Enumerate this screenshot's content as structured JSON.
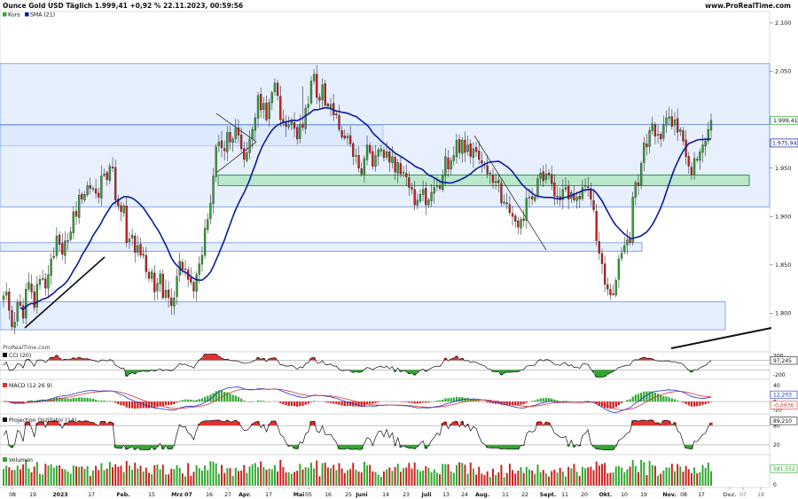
{
  "header": {
    "title": "Ounce Gold USD Täglich 1.999,41 +0,92 % 22.11.2023, 00:59:56",
    "source": "www.ProRealTime.com"
  },
  "legend": {
    "kurs": "Kurs",
    "sma": "SMA (21)"
  },
  "watermark": "ProRealTime.com",
  "colors": {
    "up": "#2ea82e",
    "down": "#d01c1c",
    "sma": "#0a1a9c",
    "zone_blue": "#d6e4fb",
    "zone_blue_border": "#6f93dd",
    "zone_green": "#a9e6b8",
    "zone_green_border": "#1b7a33",
    "macd_line": "#1a2fc4",
    "signal_line": "#e03030"
  },
  "chart_data": [
    {
      "type": "candlestick",
      "name": "Kurs",
      "ylim": [
        1762,
        2110
      ],
      "y_ticks": [
        "2.100",
        "2.050",
        "2.000",
        "1.950",
        "1.900",
        "1.850",
        "1.800"
      ],
      "y_tick_values": [
        2100,
        2050,
        2000,
        1950,
        1900,
        1850,
        1800
      ],
      "x_tick_labels": [
        "08",
        "19",
        "2023",
        "17",
        "Feb.",
        "15",
        "Mrz 07",
        "16",
        "27",
        "Apr.",
        "17",
        "Mai",
        "05",
        "16",
        "25",
        "Juni",
        "14",
        "23",
        "Juli",
        "13",
        "24",
        "Aug.",
        "11",
        "22",
        "Sept.",
        "11",
        "20",
        "Okt.",
        "10",
        "19",
        "Nov.",
        "08",
        "17",
        "Dez.",
        "07",
        "18"
      ],
      "last_label": "1.999,41",
      "sma_label": "1.975,94",
      "sma_last": 1975.94,
      "last_value": 1999.41,
      "zones": [
        {
          "kind": "blue",
          "y1": 1995,
          "y2": 2058
        },
        {
          "kind": "blue",
          "y1": 1973,
          "y2": 1994
        },
        {
          "kind": "blue",
          "y1": 1910,
          "y2": 1995
        },
        {
          "kind": "blue",
          "y1": 1864,
          "y2": 1873
        },
        {
          "kind": "blue",
          "y1": 1783,
          "y2": 1812
        },
        {
          "kind": "green",
          "y1": 1932,
          "y2": 1943
        }
      ],
      "closes": [
        1818,
        1822,
        1803,
        1786,
        1791,
        1811,
        1808,
        1795,
        1825,
        1832,
        1822,
        1806,
        1830,
        1835,
        1836,
        1826,
        1840,
        1856,
        1859,
        1880,
        1871,
        1861,
        1875,
        1875,
        1884,
        1905,
        1900,
        1922,
        1918,
        1923,
        1932,
        1929,
        1929,
        1924,
        1920,
        1942,
        1944,
        1938,
        1952,
        1950,
        1917,
        1911,
        1905,
        1911,
        1873,
        1877,
        1881,
        1863,
        1870,
        1860,
        1860,
        1843,
        1836,
        1843,
        1822,
        1831,
        1841,
        1816,
        1824,
        1816,
        1808,
        1816,
        1838,
        1854,
        1845,
        1846,
        1835,
        1832,
        1823,
        1840,
        1851,
        1860,
        1888,
        1897,
        1914,
        1942,
        1972,
        1977,
        1971,
        1968,
        1987,
        1977,
        1980,
        1991,
        1984,
        1970,
        1959,
        1966,
        1980,
        1990,
        2002,
        2025,
        2010,
        2017,
        2000,
        2018,
        2028,
        2038,
        2025,
        2000,
        1998,
        1993,
        1994,
        1998,
        1991,
        1980,
        1995,
        1992,
        2012,
        2016,
        2040,
        2047,
        2023,
        2020,
        2036,
        2015,
        2014,
        2016,
        2005,
        2005,
        1990,
        1982,
        1981,
        1983,
        1975,
        1962,
        1963,
        1950,
        1944,
        1960,
        1974,
        1966,
        1952,
        1963,
        1969,
        1970,
        1961,
        1967,
        1956,
        1962,
        1946,
        1956,
        1944,
        1946,
        1941,
        1930,
        1928,
        1912,
        1917,
        1923,
        1928,
        1912,
        1917,
        1925,
        1930,
        1932,
        1929,
        1942,
        1962,
        1949,
        1958,
        1963,
        1979,
        1966,
        1979,
        1966,
        1974,
        1962,
        1970,
        1967,
        1959,
        1955,
        1953,
        1944,
        1944,
        1935,
        1936,
        1935,
        1914,
        1915,
        1913,
        1904,
        1900,
        1895,
        1889,
        1897,
        1896,
        1919,
        1920,
        1918,
        1920,
        1939,
        1945,
        1937,
        1944,
        1943,
        1934,
        1921,
        1921,
        1917,
        1928,
        1930,
        1918,
        1925,
        1917,
        1920,
        1918,
        1930,
        1932,
        1930,
        1918,
        1907,
        1875,
        1862,
        1851,
        1830,
        1825,
        1819,
        1820,
        1834,
        1856,
        1862,
        1870,
        1876,
        1873,
        1920,
        1935,
        1932,
        1955,
        1976,
        1972,
        1989,
        1996,
        1983,
        1985,
        1980,
        1995,
        2002,
        2003,
        1993,
        2000,
        1987,
        1990,
        1978,
        1962,
        1952,
        1943,
        1960,
        1959,
        1967,
        1974,
        1978,
        1990,
        1999.41
      ]
    },
    {
      "type": "line",
      "name": "CCI (20)",
      "y_ticks": [
        "200",
        "-200"
      ],
      "y_tick_values": [
        200,
        -200
      ],
      "ylim": [
        -260,
        240
      ],
      "last_label": "97,245",
      "last_value": 97.245
    },
    {
      "type": "line",
      "name": "MACD (12 26 9)",
      "y_ticks": [
        "40",
        "0",
        "-20"
      ],
      "y_tick_values": [
        40,
        0,
        -20
      ],
      "ylim": [
        -26,
        48
      ],
      "macd_label": "12,203",
      "hist_label": "-0,0936",
      "macd_last": 12.203,
      "hist_last": -0.0936
    },
    {
      "type": "line",
      "name": "Projection Oszillator (14)",
      "y_ticks": [
        "80",
        "20"
      ],
      "y_tick_values": [
        80,
        20
      ],
      "ylim": [
        -5,
        108
      ],
      "last_label": "89,210",
      "last_value": 89.21
    },
    {
      "type": "bar",
      "name": "Volumen",
      "y_ticks": [
        "0"
      ],
      "last_label": "581.552",
      "last_value": 581552
    }
  ]
}
